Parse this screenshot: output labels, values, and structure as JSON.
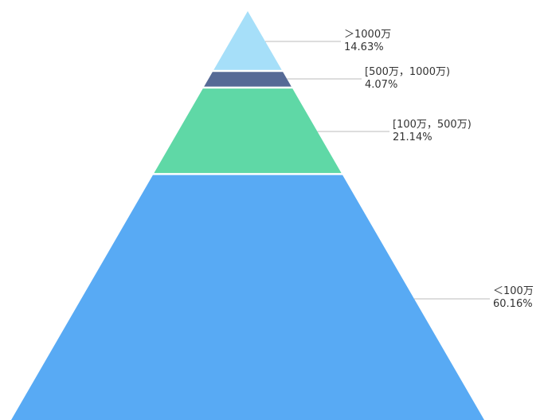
{
  "chart_data": {
    "type": "pyramid",
    "segments": [
      {
        "label": "＞1000万",
        "value": 14.63,
        "value_label": "14.63%",
        "color": "#a6dff9"
      },
      {
        "label": "[500万，1000万)",
        "value": 4.07,
        "value_label": "4.07%",
        "color": "#566a96"
      },
      {
        "label": "[100万，500万)",
        "value": 21.14,
        "value_label": "21.14%",
        "color": "#5fd8a6"
      },
      {
        "label": "＜100万",
        "value": 60.16,
        "value_label": "60.16%",
        "color": "#58aaf4"
      }
    ]
  }
}
